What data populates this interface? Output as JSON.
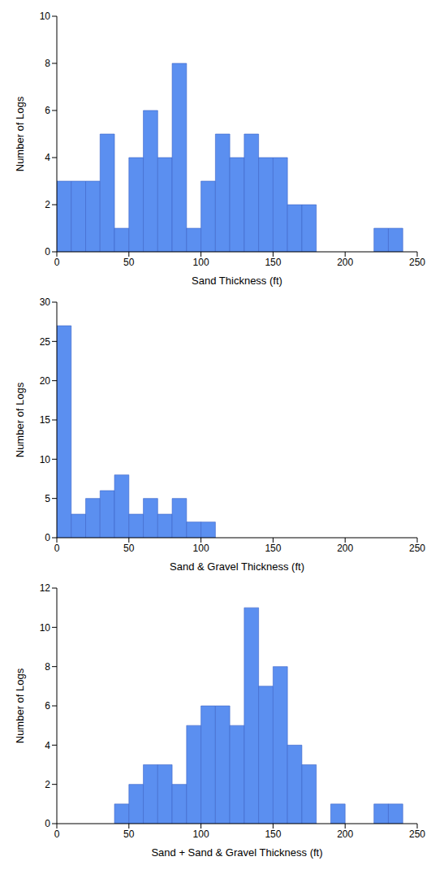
{
  "chart_data": [
    {
      "type": "histogram",
      "x_label": "Sand Thickness (ft)",
      "y_label": "Number of Logs",
      "bins": [
        0,
        10,
        20,
        30,
        40,
        50,
        60,
        70,
        80,
        90,
        100,
        110,
        120,
        130,
        140,
        150,
        160,
        170,
        180,
        190,
        200,
        210,
        220,
        230,
        240
      ],
      "values": [
        3,
        3,
        3,
        5,
        1,
        4,
        6,
        4,
        8,
        1,
        3,
        5,
        4,
        5,
        4,
        4,
        2,
        2,
        0,
        0,
        0,
        0,
        1,
        1
      ],
      "color": "#5b8ff0",
      "xlim": [
        0,
        250
      ],
      "xticks": [
        0,
        50,
        100,
        150,
        200,
        250
      ],
      "ylim": [
        0,
        10
      ],
      "yticks": [
        0,
        2,
        4,
        6,
        8,
        10
      ]
    },
    {
      "type": "histogram",
      "x_label": "Sand & Gravel Thickness (ft)",
      "y_label": "Number of Logs",
      "bins": [
        0,
        10,
        20,
        30,
        40,
        50,
        60,
        70,
        80,
        90,
        100,
        110
      ],
      "values": [
        27,
        3,
        5,
        6,
        8,
        3,
        5,
        3,
        5,
        2,
        2
      ],
      "color": "#5b8ff0",
      "xlim": [
        0,
        250
      ],
      "xticks": [
        0,
        50,
        100,
        150,
        200,
        250
      ],
      "ylim": [
        0,
        30
      ],
      "yticks": [
        0,
        5,
        10,
        15,
        20,
        25,
        30
      ]
    },
    {
      "type": "histogram",
      "x_label": "Sand + Sand & Gravel Thickness (ft)",
      "y_label": "Number of Logs",
      "bins": [
        40,
        50,
        60,
        70,
        80,
        90,
        100,
        110,
        120,
        130,
        140,
        150,
        160,
        170,
        180,
        190,
        200,
        210,
        220,
        230,
        240
      ],
      "values": [
        1,
        2,
        3,
        3,
        2,
        5,
        6,
        6,
        5,
        11,
        7,
        8,
        4,
        3,
        0,
        1,
        0,
        0,
        1,
        1
      ],
      "color": "#5b8ff0",
      "xlim": [
        0,
        250
      ],
      "xticks": [
        0,
        50,
        100,
        150,
        200,
        250
      ],
      "ylim": [
        0,
        12
      ],
      "yticks": [
        0,
        2,
        4,
        6,
        8,
        10,
        12
      ]
    }
  ]
}
